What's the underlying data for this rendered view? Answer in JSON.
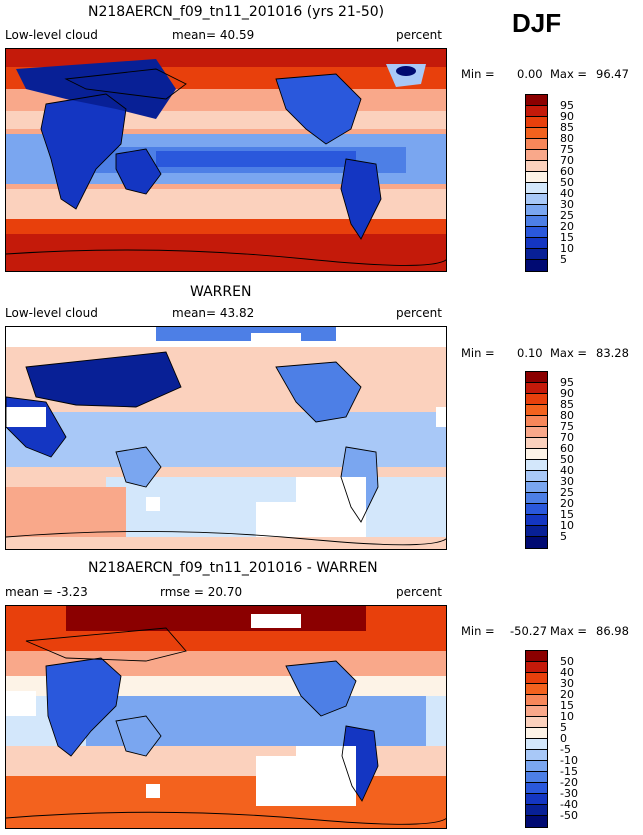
{
  "season": "DJF",
  "panels": [
    {
      "title": "N218AERCN_f09_tn11_201016 (yrs 21-50)",
      "left_label": "Low-level cloud",
      "stat": "mean=  40.59",
      "units": "percent",
      "min_label": "Min =",
      "min_value": "0.00",
      "max_label": "Max =",
      "max_value": "96.47",
      "colorbar": {
        "labels": [
          "95",
          "90",
          "85",
          "80",
          "75",
          "70",
          "60",
          "50",
          "40",
          "30",
          "25",
          "20",
          "15",
          "10",
          "5"
        ],
        "colors": [
          "#8b0000",
          "#c41a0a",
          "#e8400c",
          "#f3621e",
          "#f7875a",
          "#f9a88a",
          "#fbd1bd",
          "#fdf3e7",
          "#d3e7fb",
          "#a8c8f7",
          "#7aa6f0",
          "#4d7fe6",
          "#2a58dc",
          "#1436c2",
          "#082096",
          "#000a72"
        ]
      }
    },
    {
      "title": "WARREN",
      "left_label": "Low-level cloud",
      "stat": "mean=  43.82",
      "units": "percent",
      "min_label": "Min =",
      "min_value": "0.10",
      "max_label": "Max =",
      "max_value": "83.28",
      "colorbar": {
        "labels": [
          "95",
          "90",
          "85",
          "80",
          "75",
          "70",
          "60",
          "50",
          "40",
          "30",
          "25",
          "20",
          "15",
          "10",
          "5"
        ],
        "colors": [
          "#8b0000",
          "#c41a0a",
          "#e8400c",
          "#f3621e",
          "#f7875a",
          "#f9a88a",
          "#fbd1bd",
          "#fdf3e7",
          "#d3e7fb",
          "#a8c8f7",
          "#7aa6f0",
          "#4d7fe6",
          "#2a58dc",
          "#1436c2",
          "#082096",
          "#000a72"
        ]
      }
    },
    {
      "title": "N218AERCN_f09_tn11_201016 - WARREN",
      "left_label": "mean =  -3.23",
      "stat": "rmse =  20.70",
      "units": "percent",
      "min_label": "Min =",
      "min_value": "-50.27",
      "max_label": "Max =",
      "max_value": "86.98",
      "colorbar": {
        "labels": [
          "50",
          "40",
          "30",
          "20",
          "15",
          "10",
          "5",
          "0",
          "-5",
          "-10",
          "-15",
          "-20",
          "-30",
          "-40",
          "-50"
        ],
        "colors": [
          "#8b0000",
          "#c41a0a",
          "#e8400c",
          "#f3621e",
          "#f7875a",
          "#f9a88a",
          "#fbd1bd",
          "#fdf3e7",
          "#d3e7fb",
          "#a8c8f7",
          "#7aa6f0",
          "#4d7fe6",
          "#2a58dc",
          "#1436c2",
          "#082096",
          "#000a72"
        ]
      }
    }
  ]
}
